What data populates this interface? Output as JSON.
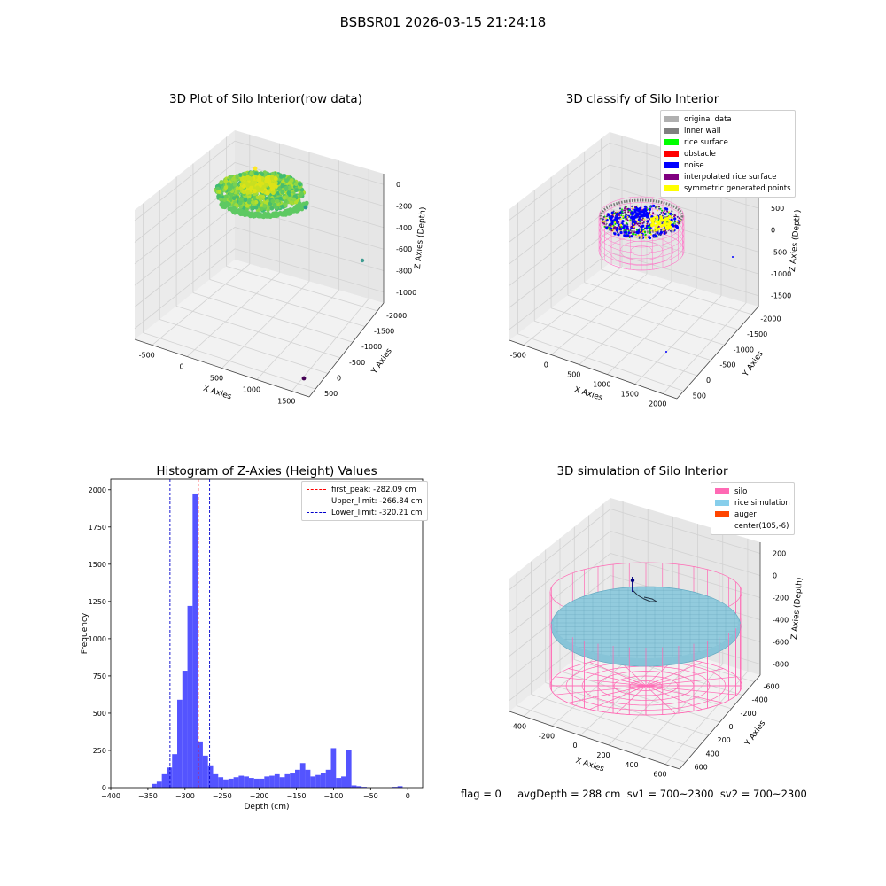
{
  "suptitle": "BSBSR01 2026-03-15 21:24:18",
  "footer": "flag = 0     avgDepth = 288 cm  sv1 = 700~2300  sv2 = 700~2300",
  "chart_data": [
    {
      "type": "scatter3d",
      "title": "3D Plot of Silo Interior(row data)",
      "xlabel": "X Axies",
      "ylabel": "Y Axies",
      "zlabel": "Z Axies (Depth)",
      "xticks": [
        "-500",
        "0",
        "500",
        "1000",
        "1500"
      ],
      "yticks": [
        "500",
        "0",
        "-500",
        "-1000",
        "-1500",
        "-2000"
      ],
      "zticks": [
        "0",
        "-200",
        "-400",
        "-600",
        "-800",
        "-1000"
      ]
    },
    {
      "type": "scatter3d",
      "title": "3D classify of Silo Interior",
      "xlabel": "X Axies",
      "ylabel": "Y Axies",
      "zlabel": "Z Axies (Depth)",
      "xticks": [
        "-500",
        "0",
        "500",
        "1000",
        "1500",
        "2000"
      ],
      "yticks": [
        "500",
        "0",
        "-500",
        "-1000",
        "-1500",
        "-2000"
      ],
      "zticks": [
        "1000",
        "500",
        "0",
        "-500",
        "-1000",
        "-1500"
      ],
      "legend": [
        {
          "label": "original data",
          "color": "#b0b0b0"
        },
        {
          "label": "inner wall",
          "color": "#808080"
        },
        {
          "label": "rice surface",
          "color": "#00ff00"
        },
        {
          "label": "obstacle",
          "color": "#ff0000"
        },
        {
          "label": "noise",
          "color": "#0000ff"
        },
        {
          "label": "interpolated rice surface",
          "color": "#800080"
        },
        {
          "label": "symmetric generated points",
          "color": "#ffff00"
        }
      ]
    },
    {
      "type": "bar",
      "title": "Histogram of Z-Axies (Height) Values",
      "xlabel": "Depth (cm)",
      "ylabel": "Frequency",
      "xlim": [
        -400,
        20
      ],
      "ylim": [
        0,
        2070
      ],
      "xticks": [
        -400,
        -350,
        -300,
        -250,
        -200,
        -150,
        -100,
        -50,
        0
      ],
      "yticks": [
        0,
        250,
        500,
        750,
        1000,
        1250,
        1500,
        1750,
        2000
      ],
      "bin_width": 6.9,
      "bin_left": [
        -345,
        -338.1,
        -331.2,
        -324.3,
        -317.4,
        -310.5,
        -303.6,
        -296.7,
        -289.8,
        -282.9,
        -276,
        -269.1,
        -262.2,
        -255.3,
        -248.4,
        -241.5,
        -234.6,
        -227.7,
        -220.8,
        -213.9,
        -207,
        -200.1,
        -193.2,
        -186.3,
        -179.4,
        -172.5,
        -165.6,
        -158.7,
        -151.8,
        -144.9,
        -138,
        -131.1,
        -124.2,
        -117.3,
        -110.4,
        -103.5,
        -96.6,
        -89.7,
        -82.8,
        -75.9,
        -69,
        -62.1,
        -55.2,
        -48.3,
        -41.4,
        -34.5,
        -27.6,
        -20.7,
        -13.8,
        -6.9
      ],
      "values": [
        25,
        40,
        90,
        135,
        225,
        590,
        785,
        1220,
        1975,
        310,
        215,
        150,
        90,
        70,
        55,
        60,
        70,
        80,
        75,
        65,
        60,
        60,
        75,
        80,
        90,
        70,
        90,
        95,
        120,
        165,
        120,
        75,
        85,
        100,
        120,
        265,
        65,
        75,
        250,
        15,
        10,
        5,
        0,
        0,
        0,
        0,
        0,
        5,
        10,
        0
      ],
      "bar_color": "#4b4bff",
      "vlines": [
        {
          "label": "first_peak: -282.09 cm",
          "x": -282.09,
          "color": "#ff0000"
        },
        {
          "label": "Upper_limit: -266.84 cm",
          "x": -266.84,
          "color": "#0000cc"
        },
        {
          "label": "Lower_limit: -320.21 cm",
          "x": -320.21,
          "color": "#0000cc"
        }
      ]
    },
    {
      "type": "surface3d",
      "title": "3D simulation of Silo Interior",
      "xlabel": "X Axies",
      "ylabel": "Y Axies",
      "zlabel": "Z Axies (Depth)",
      "xticks": [
        "-400",
        "-200",
        "0",
        "200",
        "400",
        "600"
      ],
      "yticks": [
        "600",
        "400",
        "200",
        "0",
        "-200",
        "-400",
        "-600"
      ],
      "zticks": [
        "200",
        "0",
        "-200",
        "-400",
        "-600",
        "-800"
      ],
      "legend": [
        {
          "label": "silo",
          "color": "#ff69b4"
        },
        {
          "label": "rice simulation",
          "color": "#87ceeb"
        },
        {
          "label": "auger",
          "color": "#ff4500"
        },
        {
          "label": "center(105,-6)",
          "color": ""
        }
      ]
    }
  ]
}
